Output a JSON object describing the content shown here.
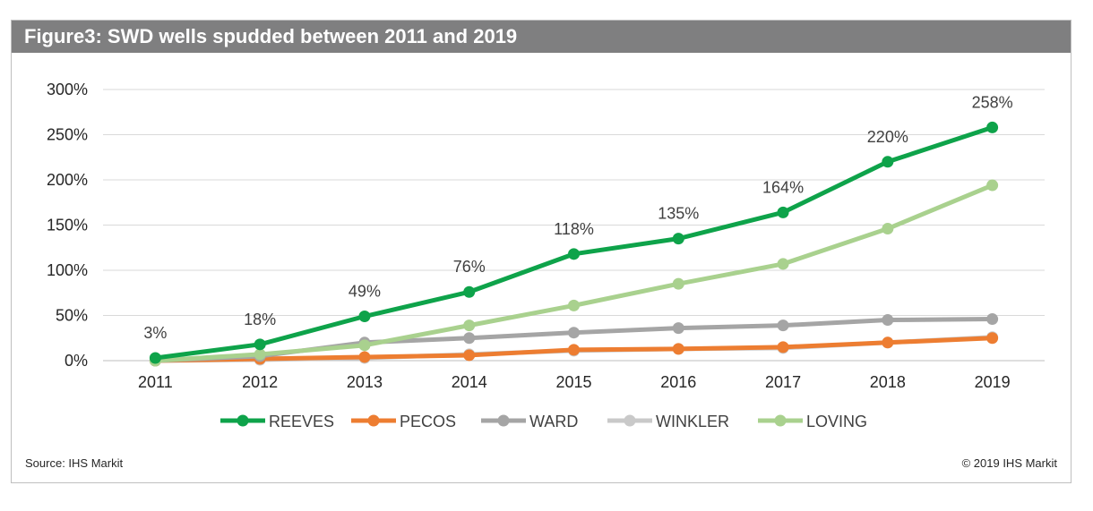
{
  "header": {
    "title": "Figure3: SWD wells spudded between 2011 and 2019"
  },
  "footer": {
    "source": "Source: IHS Markit",
    "copyright": "© 2019 IHS Markit"
  },
  "chart_data": {
    "type": "line",
    "title": "Figure3: SWD wells spudded between 2011 and 2019",
    "xlabel": "",
    "ylabel": "",
    "x": [
      "2011",
      "2012",
      "2013",
      "2014",
      "2015",
      "2016",
      "2017",
      "2018",
      "2019"
    ],
    "ylim": [
      0,
      300
    ],
    "yticks": [
      0,
      50,
      100,
      150,
      200,
      250,
      300
    ],
    "ytick_labels": [
      "0%",
      "50%",
      "100%",
      "150%",
      "200%",
      "250%",
      "300%"
    ],
    "grid": true,
    "legend_position": "bottom",
    "series": [
      {
        "name": "REEVES",
        "color": "#0ea34a",
        "values": [
          3,
          18,
          49,
          76,
          118,
          135,
          164,
          220,
          258
        ],
        "data_labels": [
          "3%",
          "18%",
          "49%",
          "76%",
          "118%",
          "135%",
          "164%",
          "220%",
          "258%"
        ]
      },
      {
        "name": "PECOS",
        "color": "#ed7d31",
        "values": [
          0,
          2,
          4,
          6,
          12,
          13,
          15,
          20,
          25
        ]
      },
      {
        "name": "WARD",
        "color": "#a5a5a5",
        "values": [
          0,
          5,
          20,
          25,
          31,
          36,
          39,
          45,
          46
        ]
      },
      {
        "name": "WINKLER",
        "color": "#c9c9c9",
        "values": [
          0,
          1,
          3,
          7,
          11,
          13,
          14,
          20,
          26
        ]
      },
      {
        "name": "LOVING",
        "color": "#a9d18e",
        "values": [
          0,
          7,
          17,
          39,
          61,
          85,
          107,
          146,
          194
        ]
      }
    ]
  }
}
